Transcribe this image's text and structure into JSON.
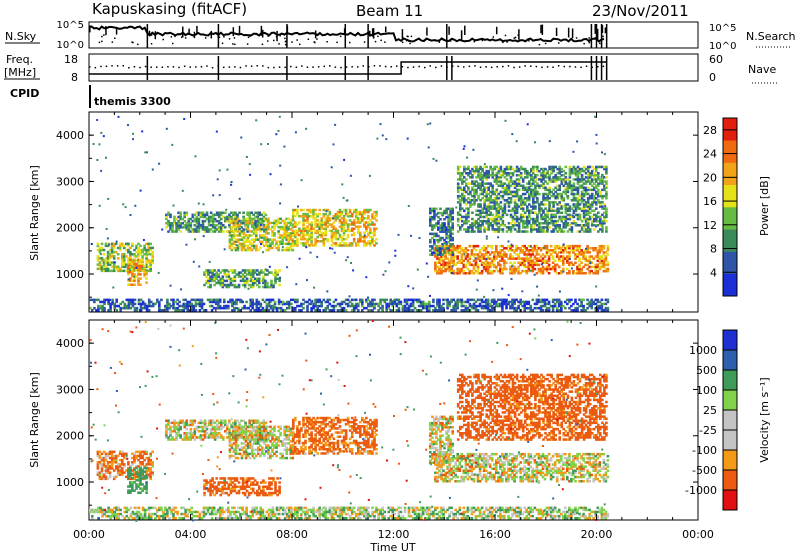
{
  "header": {
    "station": "Kapuskasing (fitACF)",
    "beam": "Beam 11",
    "date": "23/Nov/2011"
  },
  "noise_panel": {
    "left_label": "N.Sky",
    "left_ticks": [
      "10^5",
      "10^0"
    ],
    "right_ticks": [
      "10^5",
      "10^0"
    ],
    "right_label": "N.Search"
  },
  "freq_panel": {
    "left_label_1": "Freq.",
    "left_label_2": "[MHz]",
    "left_ticks": [
      "18",
      "8"
    ],
    "right_ticks": [
      "60",
      "0"
    ],
    "right_label": "Nave"
  },
  "cpid": {
    "label": "CPID",
    "program": "themis 3300"
  },
  "colors": {
    "power_scale": [
      "#1b2fd6",
      "#2e55a8",
      "#3a8a5a",
      "#66bb44",
      "#e6e21a",
      "#f2a31a",
      "#f06a10",
      "#e11f0c"
    ],
    "velocity_scale": [
      "#e21010",
      "#ea5a10",
      "#f39a18",
      "#c4c4c4",
      "#c4c4c4",
      "#7fd24a",
      "#3f9b5a",
      "#2e5fae",
      "#1f2fd2"
    ]
  },
  "chart_data": [
    {
      "type": "heatmap",
      "panel": "power",
      "ylabel": "Slant Range [km]",
      "ylim": [
        180,
        4500
      ],
      "yticks": [
        "1000",
        "2000",
        "3000",
        "4000"
      ],
      "xlabel": "",
      "xlim": [
        "00:00",
        "24:00"
      ],
      "colorbar": {
        "title": "Power [dB]",
        "ticks": [
          "4",
          "8",
          "12",
          "16",
          "20",
          "24",
          "28"
        ],
        "range": [
          0,
          30
        ]
      },
      "echo_regions": [
        {
          "t0": 0.3,
          "t1": 2.5,
          "r0": 1050,
          "r1": 1650,
          "value": 14
        },
        {
          "t0": 1.5,
          "t1": 2.3,
          "r0": 750,
          "r1": 1300,
          "value": 20
        },
        {
          "t0": 3.0,
          "t1": 7.0,
          "r0": 1900,
          "r1": 2350,
          "value": 10
        },
        {
          "t0": 5.5,
          "t1": 8.0,
          "r0": 1500,
          "r1": 2200,
          "value": 16
        },
        {
          "t0": 8.0,
          "t1": 11.3,
          "r0": 1600,
          "r1": 2400,
          "value": 18
        },
        {
          "t0": 4.5,
          "t1": 7.5,
          "r0": 700,
          "r1": 1100,
          "value": 12
        },
        {
          "t0": 13.6,
          "t1": 20.4,
          "r0": 1000,
          "r1": 1600,
          "value": 22
        },
        {
          "t0": 13.4,
          "t1": 14.3,
          "r0": 1400,
          "r1": 2400,
          "value": 8
        },
        {
          "t0": 14.5,
          "t1": 20.4,
          "r0": 1900,
          "r1": 3300,
          "value": 10
        },
        {
          "t0": 0.0,
          "t1": 20.4,
          "r0": 200,
          "r1": 450,
          "value": 6
        }
      ]
    },
    {
      "type": "heatmap",
      "panel": "velocity",
      "ylabel": "Slant Range [km]",
      "ylim": [
        180,
        4500
      ],
      "yticks": [
        "1000",
        "2000",
        "3000",
        "4000"
      ],
      "xlabel": "Time UT",
      "xticks": [
        "00:00",
        "04:00",
        "08:00",
        "12:00",
        "16:00",
        "20:00",
        "00:00"
      ],
      "xlim": [
        "00:00",
        "24:00"
      ],
      "colorbar": {
        "title": "Velocity [m s⁻¹]",
        "ticks": [
          "1000",
          "500",
          "100",
          "25",
          "-25",
          "-100",
          "-500",
          "-1000"
        ],
        "range": [
          -1000,
          1000
        ]
      },
      "echo_regions": [
        {
          "t0": 0.3,
          "t1": 2.5,
          "r0": 1050,
          "r1": 1650,
          "value": -100
        },
        {
          "t0": 1.5,
          "t1": 2.3,
          "r0": 750,
          "r1": 1300,
          "value": 200
        },
        {
          "t0": 3.0,
          "t1": 7.0,
          "r0": 1900,
          "r1": 2350,
          "value": 0
        },
        {
          "t0": 5.5,
          "t1": 8.0,
          "r0": 1500,
          "r1": 2200,
          "value": 0
        },
        {
          "t0": 8.0,
          "t1": 11.3,
          "r0": 1600,
          "r1": 2400,
          "value": -150
        },
        {
          "t0": 4.5,
          "t1": 7.5,
          "r0": 700,
          "r1": 1100,
          "value": -200
        },
        {
          "t0": 13.6,
          "t1": 20.4,
          "r0": 1000,
          "r1": 1600,
          "value": 0
        },
        {
          "t0": 13.4,
          "t1": 14.3,
          "r0": 1400,
          "r1": 2400,
          "value": 0
        },
        {
          "t0": 14.5,
          "t1": 20.4,
          "r0": 1900,
          "r1": 3300,
          "value": -200
        },
        {
          "t0": 0.0,
          "t1": 20.4,
          "r0": 200,
          "r1": 450,
          "value": 50
        }
      ]
    }
  ]
}
